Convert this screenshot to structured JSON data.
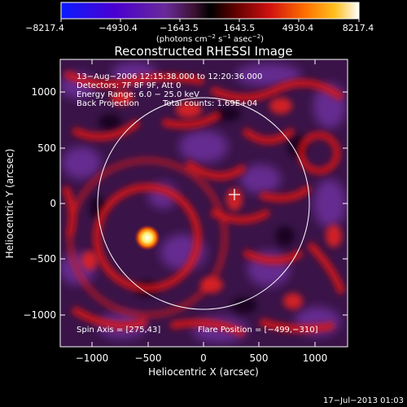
{
  "colorbar": {
    "ticks": [
      "−8217.4",
      "−4930.4",
      "−1643.5",
      "1643.5",
      "4930.4",
      "8217.4"
    ],
    "units_prefix": "(photons cm",
    "units_exp1": "−2",
    "units_mid": " s",
    "units_exp2": "−1",
    "units_mid2": " asec",
    "units_exp3": "−2",
    "units_suffix": ")"
  },
  "plot": {
    "title": "Reconstructed RHESSI Image",
    "xlabel": "Heliocentric X (arcsec)",
    "ylabel": "Heliocentric Y (arcsec)",
    "xticks": [
      "−1000",
      "−500",
      "0",
      "500",
      "1000"
    ],
    "yticks": [
      "1000",
      "500",
      "0",
      "−500",
      "−1000"
    ],
    "xlim": [
      -1300,
      1300
    ],
    "ylim": [
      -1300,
      1300
    ]
  },
  "annotations": {
    "line1": "13−Aug−2006 12:15:38.000 to 12:20:36.000",
    "line2": "Detectors: 7F 8F 9F, Att 0",
    "line3": "Energy Range: 6.0 − 25.0 keV",
    "line4a": "Back Projection",
    "line4b": "Total counts: 1.69E+04",
    "spin_axis": "Spin Axis = [275,43]",
    "flare_position": "Flare Position = [−499,−310]"
  },
  "footer": {
    "timestamp": "17−Jul−2013 01:03"
  },
  "colors": {
    "bg": "#000000",
    "dark_purple": "#2a0c3a",
    "purple": "#5a2a8a",
    "red": "#d81818",
    "orange": "#ff8a10",
    "yellow": "#fff6a0"
  }
}
